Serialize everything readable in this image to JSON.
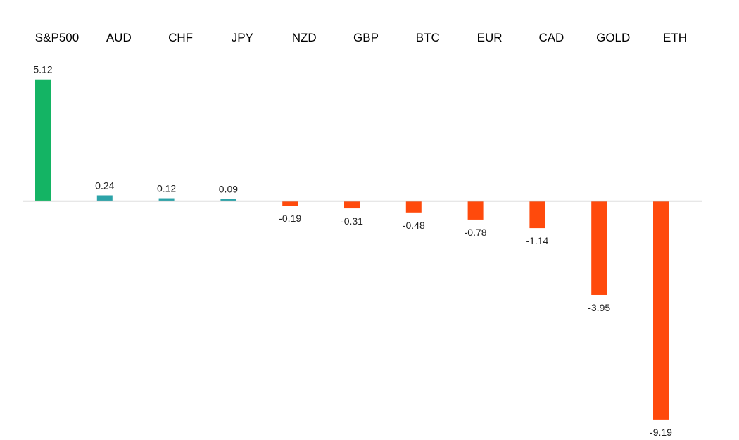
{
  "chart_data": {
    "type": "bar",
    "title": "",
    "xlabel": "",
    "ylabel": "",
    "categories": [
      "S&P500",
      "AUD",
      "CHF",
      "JPY",
      "NZD",
      "GBP",
      "BTC",
      "EUR",
      "CAD",
      "GOLD",
      "ETH"
    ],
    "values": [
      5.12,
      0.24,
      0.12,
      0.09,
      -0.19,
      -0.31,
      -0.48,
      -0.78,
      -1.14,
      -3.95,
      -9.19
    ],
    "value_labels": [
      "5.12",
      "0.24",
      "0.12",
      "0.09",
      "-0.19",
      "-0.31",
      "-0.48",
      "-0.78",
      "-1.14",
      "-3.95",
      "-9.19"
    ],
    "ylim": [
      -10.2,
      6.8
    ],
    "grid": false,
    "legend": "none",
    "category_label_position": "top",
    "colors": {
      "highlight_positive": "#14b464",
      "small_positive": "#2ca3a8",
      "negative": "#ff4a0c",
      "baseline": "#bfbfbf"
    },
    "bar_colors": [
      "#14b464",
      "#2ca3a8",
      "#2ca3a8",
      "#2ca3a8",
      "#ff4a0c",
      "#ff4a0c",
      "#ff4a0c",
      "#ff4a0c",
      "#ff4a0c",
      "#ff4a0c",
      "#ff4a0c"
    ]
  }
}
